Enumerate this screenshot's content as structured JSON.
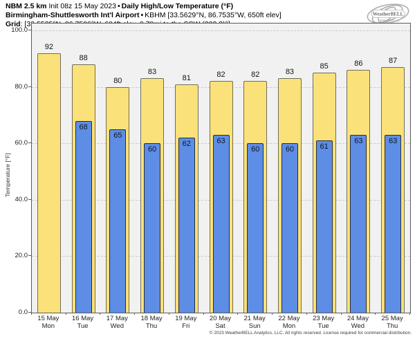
{
  "header": {
    "line1_bold1": "NBM 2.5 km",
    "line1_regular": "Init 08z 15 May 2023",
    "line1_sep": "•",
    "line1_bold2": "Daily High/Low Temperature (°F)",
    "line2_bold": "Birmingham-Shuttlesworth Int'l Airport",
    "line2_sep": "•",
    "line2_regular": "KBHM [33.5629°N, 86.7535°W, 650ft elev]",
    "line3_bold": "Grid",
    "line3_regular": ": [33.5525°N, 86.7586°W, 604ft elev, 0.78mi to the SSW (202.3)°]"
  },
  "logo": {
    "name": "WeatherBELL",
    "sub": "ANALYTICS LLC"
  },
  "chart_data": {
    "type": "bar",
    "title": "NBM 2.5 km Daily High/Low Temperature (°F)",
    "xlabel": "",
    "ylabel": "Temperature [°F]",
    "ylim": [
      0,
      102.5
    ],
    "yticks": [
      0,
      20,
      40,
      60,
      80,
      100
    ],
    "ytick_labels": [
      "0.0",
      "20.0",
      "40.0",
      "60.0",
      "80.0",
      "100.0"
    ],
    "grid": "horizontal-dashed",
    "legend": "none",
    "categories": [
      {
        "date": "15 May",
        "dow": "Mon"
      },
      {
        "date": "16 May",
        "dow": "Tue"
      },
      {
        "date": "17 May",
        "dow": "Wed"
      },
      {
        "date": "18 May",
        "dow": "Thu"
      },
      {
        "date": "19 May",
        "dow": "Fri"
      },
      {
        "date": "20 May",
        "dow": "Sat"
      },
      {
        "date": "21 May",
        "dow": "Sun"
      },
      {
        "date": "22 May",
        "dow": "Mon"
      },
      {
        "date": "23 May",
        "dow": "Tue"
      },
      {
        "date": "24 May",
        "dow": "Wed"
      },
      {
        "date": "25 May",
        "dow": "Thu"
      }
    ],
    "series": [
      {
        "name": "Daily High",
        "color": "#fbe17a",
        "values": [
          92,
          88,
          80,
          83,
          81,
          82,
          82,
          83,
          85,
          86,
          87
        ]
      },
      {
        "name": "Daily Low",
        "color": "#5e8de6",
        "values": [
          null,
          68,
          65,
          60,
          62,
          63,
          60,
          60,
          61,
          63,
          63
        ]
      }
    ]
  },
  "colors": {
    "high_fill": "#fbe17a",
    "high_border": "#6e6e58",
    "low_fill": "#5e8de6",
    "low_border": "#262b34",
    "plot_bg": "#f1f1f1",
    "gridline": "#c9c9c9",
    "spine": "#5a5a5a"
  },
  "footer_text": "© 2023 WeatherBELL Analytics, LLC. All rights reserved. License required for commercial distribution."
}
